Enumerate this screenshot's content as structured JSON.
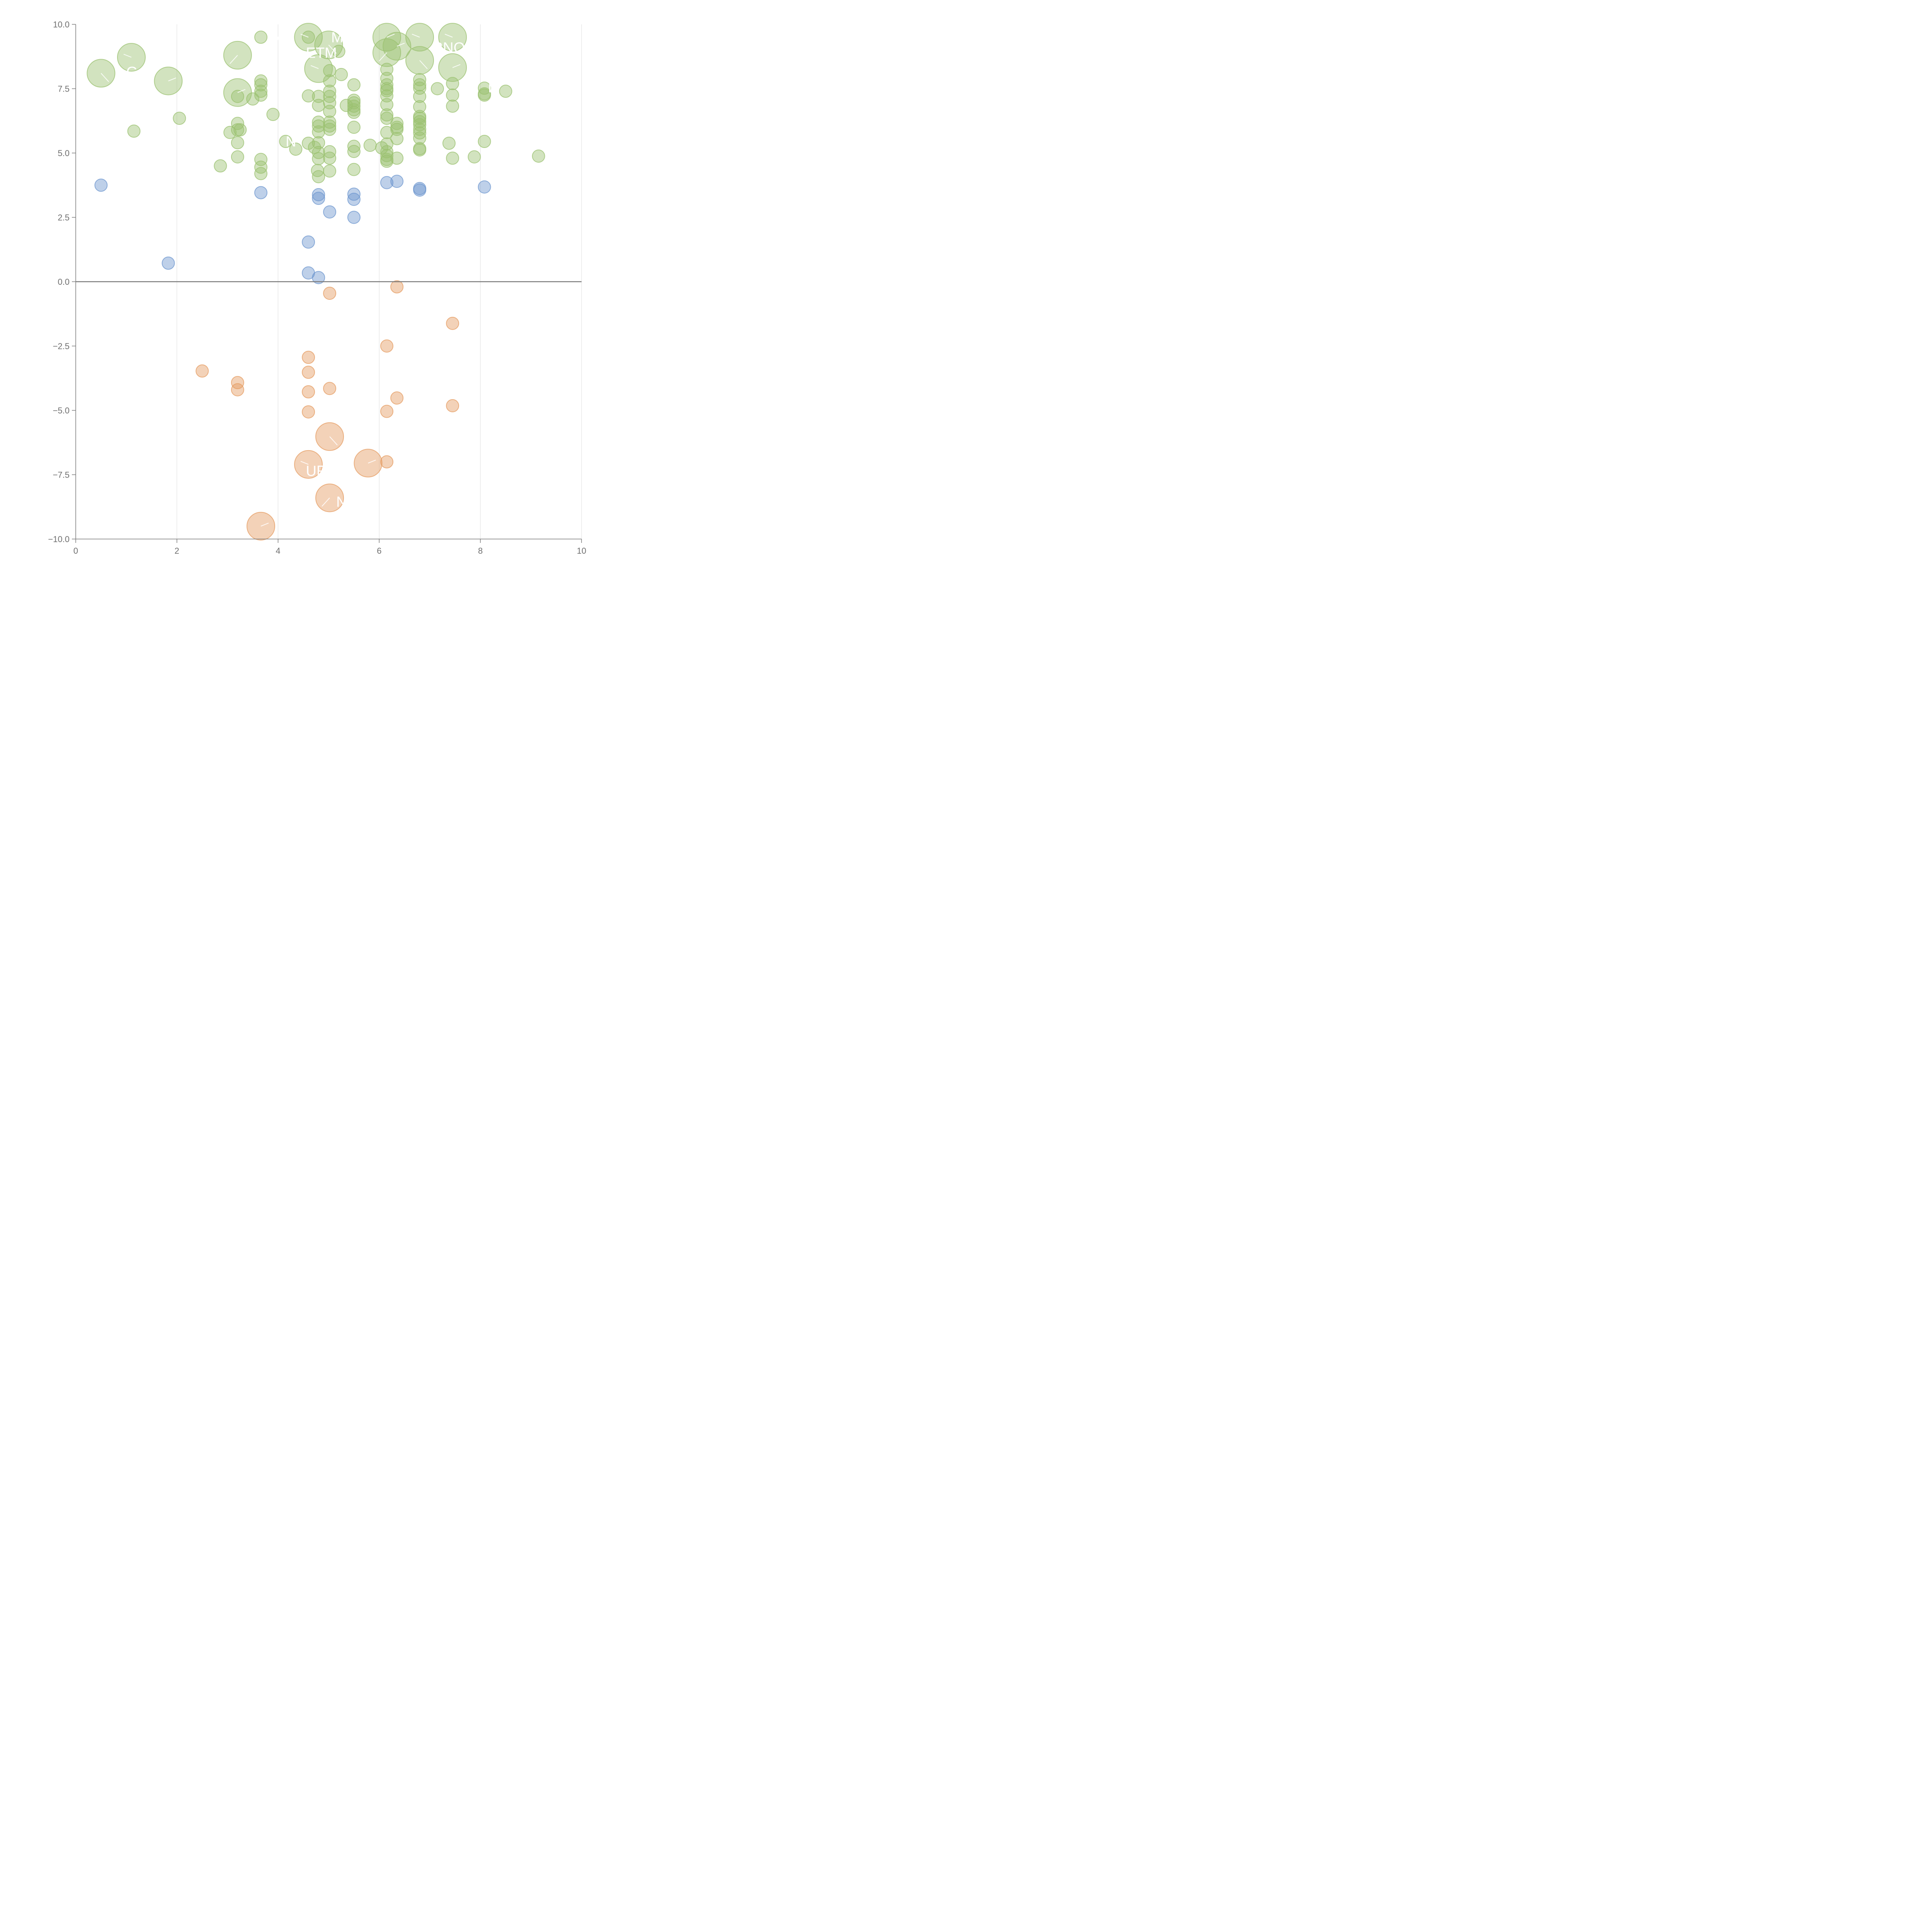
{
  "chart_data": {
    "type": "scatter",
    "title": "",
    "xlabel": "",
    "ylabel": "",
    "xlim": [
      0,
      10
    ],
    "ylim": [
      -10,
      10
    ],
    "x_ticks": [
      0,
      2,
      4,
      6,
      8,
      10
    ],
    "y_ticks": [
      -10,
      -7.5,
      -5,
      -2.5,
      0,
      2.5,
      5,
      7.5,
      10
    ],
    "x_tick_labels": [
      "0",
      "2",
      "4",
      "6",
      "8",
      "10"
    ],
    "y_tick_labels": [
      "−10.0",
      "−7.5",
      "−5.0",
      "−2.5",
      "0.0",
      "2.5",
      "5.0",
      "7.5",
      "10.0"
    ],
    "grid": "vertical",
    "zero_line": true,
    "legend": "none",
    "colors": {
      "positive_high": "#9bc170",
      "positive_low": "#6e97cf",
      "negative": "#e59c62",
      "axis": "#7a7a7a",
      "grid": "#dddddd"
    },
    "groups": [
      {
        "key": "positive_high",
        "points": [
          [
            0.5,
            8.1,
            "big"
          ],
          [
            1.1,
            8.72,
            "big"
          ],
          [
            1.83,
            7.8,
            "big"
          ],
          [
            3.2,
            8.8,
            "big"
          ],
          [
            3.2,
            7.35,
            "big"
          ],
          [
            4.6,
            9.5,
            "big"
          ],
          [
            5.0,
            9.2,
            "big"
          ],
          [
            4.8,
            8.28,
            "big"
          ],
          [
            6.15,
            9.5,
            "big"
          ],
          [
            6.15,
            8.9,
            "big"
          ],
          [
            6.35,
            9.15,
            "big"
          ],
          [
            6.8,
            9.5,
            "big"
          ],
          [
            6.8,
            8.6,
            "big"
          ],
          [
            7.45,
            9.5,
            "big"
          ],
          [
            7.45,
            8.32,
            "big"
          ],
          [
            3.66,
            9.5
          ],
          [
            4.6,
            9.5
          ],
          [
            5.2,
            8.95
          ],
          [
            5.02,
            8.2
          ],
          [
            5.25,
            8.05
          ],
          [
            5.02,
            7.8
          ],
          [
            5.02,
            7.4
          ],
          [
            5.02,
            7.2
          ],
          [
            5.02,
            6.95
          ],
          [
            5.02,
            6.62
          ],
          [
            5.02,
            6.2
          ],
          [
            5.02,
            6.05
          ],
          [
            5.02,
            5.92
          ],
          [
            5.02,
            5.05
          ],
          [
            5.02,
            4.8
          ],
          [
            5.02,
            4.3
          ],
          [
            1.15,
            5.85
          ],
          [
            2.05,
            6.35
          ],
          [
            2.86,
            4.5
          ],
          [
            3.05,
            5.8
          ],
          [
            3.2,
            6.15
          ],
          [
            3.2,
            5.9
          ],
          [
            3.2,
            5.4
          ],
          [
            3.2,
            4.85
          ],
          [
            3.25,
            5.9
          ],
          [
            3.2,
            7.2
          ],
          [
            3.5,
            7.1
          ],
          [
            3.66,
            7.8
          ],
          [
            3.66,
            7.65
          ],
          [
            3.66,
            7.4
          ],
          [
            3.66,
            7.25
          ],
          [
            3.66,
            4.75
          ],
          [
            3.66,
            4.45
          ],
          [
            3.66,
            4.2
          ],
          [
            3.9,
            6.5
          ],
          [
            4.15,
            5.45
          ],
          [
            4.35,
            5.15
          ],
          [
            4.6,
            7.22
          ],
          [
            4.6,
            5.38
          ],
          [
            4.72,
            5.22
          ],
          [
            4.8,
            7.2
          ],
          [
            4.8,
            6.85
          ],
          [
            4.8,
            6.2
          ],
          [
            4.8,
            6.05
          ],
          [
            4.8,
            5.82
          ],
          [
            4.8,
            5.4
          ],
          [
            4.8,
            5.02
          ],
          [
            4.8,
            4.78
          ],
          [
            4.78,
            4.32
          ],
          [
            4.8,
            4.08
          ],
          [
            5.5,
            7.65
          ],
          [
            5.5,
            7.05
          ],
          [
            5.5,
            6.95
          ],
          [
            5.5,
            6.82
          ],
          [
            5.5,
            6.68
          ],
          [
            5.5,
            6.58
          ],
          [
            5.5,
            6.0
          ],
          [
            5.5,
            5.26
          ],
          [
            5.5,
            5.06
          ],
          [
            5.5,
            4.36
          ],
          [
            5.35,
            6.85
          ],
          [
            5.82,
            5.3
          ],
          [
            6.05,
            5.2
          ],
          [
            6.15,
            8.25
          ],
          [
            6.15,
            7.9
          ],
          [
            6.15,
            7.65
          ],
          [
            6.15,
            7.5
          ],
          [
            6.15,
            7.42
          ],
          [
            6.15,
            7.22
          ],
          [
            6.15,
            6.88
          ],
          [
            6.15,
            6.48
          ],
          [
            6.15,
            6.35
          ],
          [
            6.15,
            5.8
          ],
          [
            6.15,
            5.35
          ],
          [
            6.15,
            5.05
          ],
          [
            6.15,
            4.9
          ],
          [
            6.15,
            4.75
          ],
          [
            6.15,
            4.68
          ],
          [
            6.35,
            6.15
          ],
          [
            6.35,
            6.0
          ],
          [
            6.35,
            5.92
          ],
          [
            6.35,
            5.56
          ],
          [
            6.35,
            4.8
          ],
          [
            6.8,
            7.85
          ],
          [
            6.8,
            7.65
          ],
          [
            6.8,
            7.52
          ],
          [
            6.8,
            7.2
          ],
          [
            6.8,
            6.8
          ],
          [
            6.8,
            6.42
          ],
          [
            6.8,
            6.35
          ],
          [
            6.8,
            6.22
          ],
          [
            6.8,
            6.1
          ],
          [
            6.8,
            5.92
          ],
          [
            6.8,
            5.78
          ],
          [
            6.8,
            5.58
          ],
          [
            6.8,
            5.17
          ],
          [
            6.8,
            5.12
          ],
          [
            7.15,
            7.5
          ],
          [
            7.38,
            5.38
          ],
          [
            7.45,
            7.7
          ],
          [
            7.45,
            7.25
          ],
          [
            7.45,
            6.82
          ],
          [
            7.45,
            4.8
          ],
          [
            7.88,
            4.85
          ],
          [
            8.08,
            7.52
          ],
          [
            8.08,
            7.3
          ],
          [
            8.08,
            7.25
          ],
          [
            8.08,
            5.45
          ],
          [
            8.5,
            7.4
          ],
          [
            9.15,
            4.88
          ]
        ]
      },
      {
        "key": "positive_low",
        "points": [
          [
            0.5,
            3.75
          ],
          [
            1.83,
            0.72
          ],
          [
            3.66,
            3.46
          ],
          [
            4.6,
            1.54
          ],
          [
            4.6,
            0.34
          ],
          [
            4.8,
            3.38
          ],
          [
            4.8,
            3.24
          ],
          [
            4.8,
            0.16
          ],
          [
            5.02,
            2.71
          ],
          [
            5.5,
            3.4
          ],
          [
            5.5,
            3.2
          ],
          [
            5.5,
            2.5
          ],
          [
            6.15,
            3.85
          ],
          [
            6.35,
            3.9
          ],
          [
            6.8,
            3.62
          ],
          [
            6.8,
            3.56
          ],
          [
            8.08,
            3.68
          ]
        ]
      },
      {
        "key": "negative",
        "points": [
          [
            5.02,
            -6.02,
            "big"
          ],
          [
            4.6,
            -7.1,
            "big"
          ],
          [
            5.78,
            -7.05,
            "big"
          ],
          [
            5.02,
            -8.4,
            "big"
          ],
          [
            3.66,
            -9.5,
            "big"
          ],
          [
            6.35,
            -0.2
          ],
          [
            5.02,
            -0.45
          ],
          [
            7.45,
            -1.62
          ],
          [
            6.15,
            -2.5
          ],
          [
            4.6,
            -2.94
          ],
          [
            2.5,
            -3.47
          ],
          [
            4.6,
            -3.52
          ],
          [
            3.2,
            -3.92
          ],
          [
            3.2,
            -4.2
          ],
          [
            5.02,
            -4.15
          ],
          [
            4.6,
            -4.28
          ],
          [
            6.35,
            -4.52
          ],
          [
            7.45,
            -4.82
          ],
          [
            4.6,
            -5.06
          ],
          [
            6.15,
            -5.04
          ],
          [
            6.15,
            -7.0
          ]
        ]
      }
    ],
    "text_labels": [
      {
        "text": "M",
        "x": 3.85,
        "y": 9.5
      },
      {
        "text": "M",
        "x": 5.05,
        "y": 9.5
      },
      {
        "text": "ETM",
        "x": 4.55,
        "y": 8.9
      },
      {
        "text": "RNOR",
        "x": 7.05,
        "y": 9.1
      },
      {
        "text": "GA",
        "x": 1.0,
        "y": 8.15
      },
      {
        "text": "N",
        "x": 4.15,
        "y": 5.45
      },
      {
        "text": "D",
        "x": 8.15,
        "y": 7.55
      },
      {
        "text": "UR",
        "x": 4.55,
        "y": -7.35
      },
      {
        "text": "N",
        "x": 5.15,
        "y": -8.55
      }
    ]
  }
}
